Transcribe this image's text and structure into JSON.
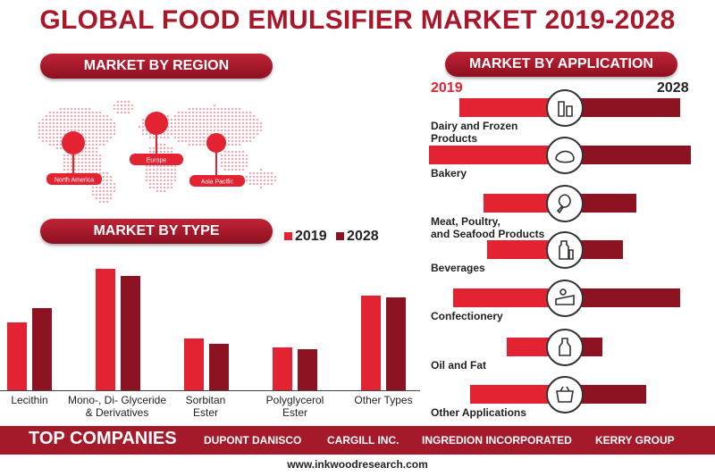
{
  "title": "GLOBAL FOOD EMULSIFIER MARKET  2019-2028",
  "sections": {
    "region": "MARKET BY REGION",
    "type": "MARKET BY TYPE",
    "application": "MARKET BY APPLICATION"
  },
  "regions": [
    "North America",
    "Europe",
    "Asia Pacific"
  ],
  "colors": {
    "y2019": "#e32232",
    "y2028": "#8e1322",
    "banner": "#a51a2a"
  },
  "chart_data": [
    {
      "type": "bar",
      "categories": [
        "Lecithin",
        "Mono-, Di- Glyceride & Derivatives",
        "Sorbitan Ester",
        "Polyglycerol Ester",
        "Other Types"
      ],
      "category_lines": [
        [
          "Lecithin"
        ],
        [
          "Mono-, Di- Glyceride",
          "& Derivatives"
        ],
        [
          "Sorbitan",
          "Ester"
        ],
        [
          "Polyglycerol",
          "Ester"
        ],
        [
          "Other Types"
        ]
      ],
      "series": [
        {
          "name": "2019",
          "values": [
            3.8,
            6.8,
            2.9,
            2.4,
            5.3
          ]
        },
        {
          "name": "2028",
          "values": [
            4.6,
            6.4,
            2.6,
            2.3,
            5.2
          ]
        }
      ],
      "title": "MARKET BY TYPE",
      "legend": "top-right",
      "grid": false
    },
    {
      "type": "bar",
      "categories": [
        "Dairy and Frozen Products",
        "Bakery",
        "Meat, Poultry, and Seafood Products",
        "Beverages",
        "Confectionery",
        "Oil and Fat",
        "Other Applications"
      ],
      "category_lines": [
        [
          "Dairy and Frozen",
          "Products"
        ],
        [
          "Bakery"
        ],
        [
          "Meat, Poultry,",
          "and Seafood Products"
        ],
        [
          "Beverages"
        ],
        [
          "Confectionery"
        ],
        [
          "Oil and Fat"
        ],
        [
          "Other Applications"
        ]
      ],
      "icons": [
        "dairy-icon",
        "bakery-icon",
        "meat-icon",
        "beverage-icon",
        "confectionery-icon",
        "oil-icon",
        "grocery-icon"
      ],
      "series": [
        {
          "name": "2019",
          "values": [
            3.1,
            4.0,
            2.4,
            2.3,
            3.3,
            1.7,
            2.8
          ]
        },
        {
          "name": "2028",
          "values": [
            3.4,
            3.7,
            2.1,
            1.7,
            3.4,
            1.1,
            2.4
          ]
        }
      ],
      "title": "MARKET BY APPLICATION",
      "legend": "top"
    }
  ],
  "footer": {
    "heading": "TOP COMPANIES",
    "companies": [
      "DUPONT DANISCO",
      "CARGILL INC.",
      "INGREDION INCORPORATED",
      "KERRY GROUP"
    ],
    "url": "www.inkwoodresearch.com"
  }
}
